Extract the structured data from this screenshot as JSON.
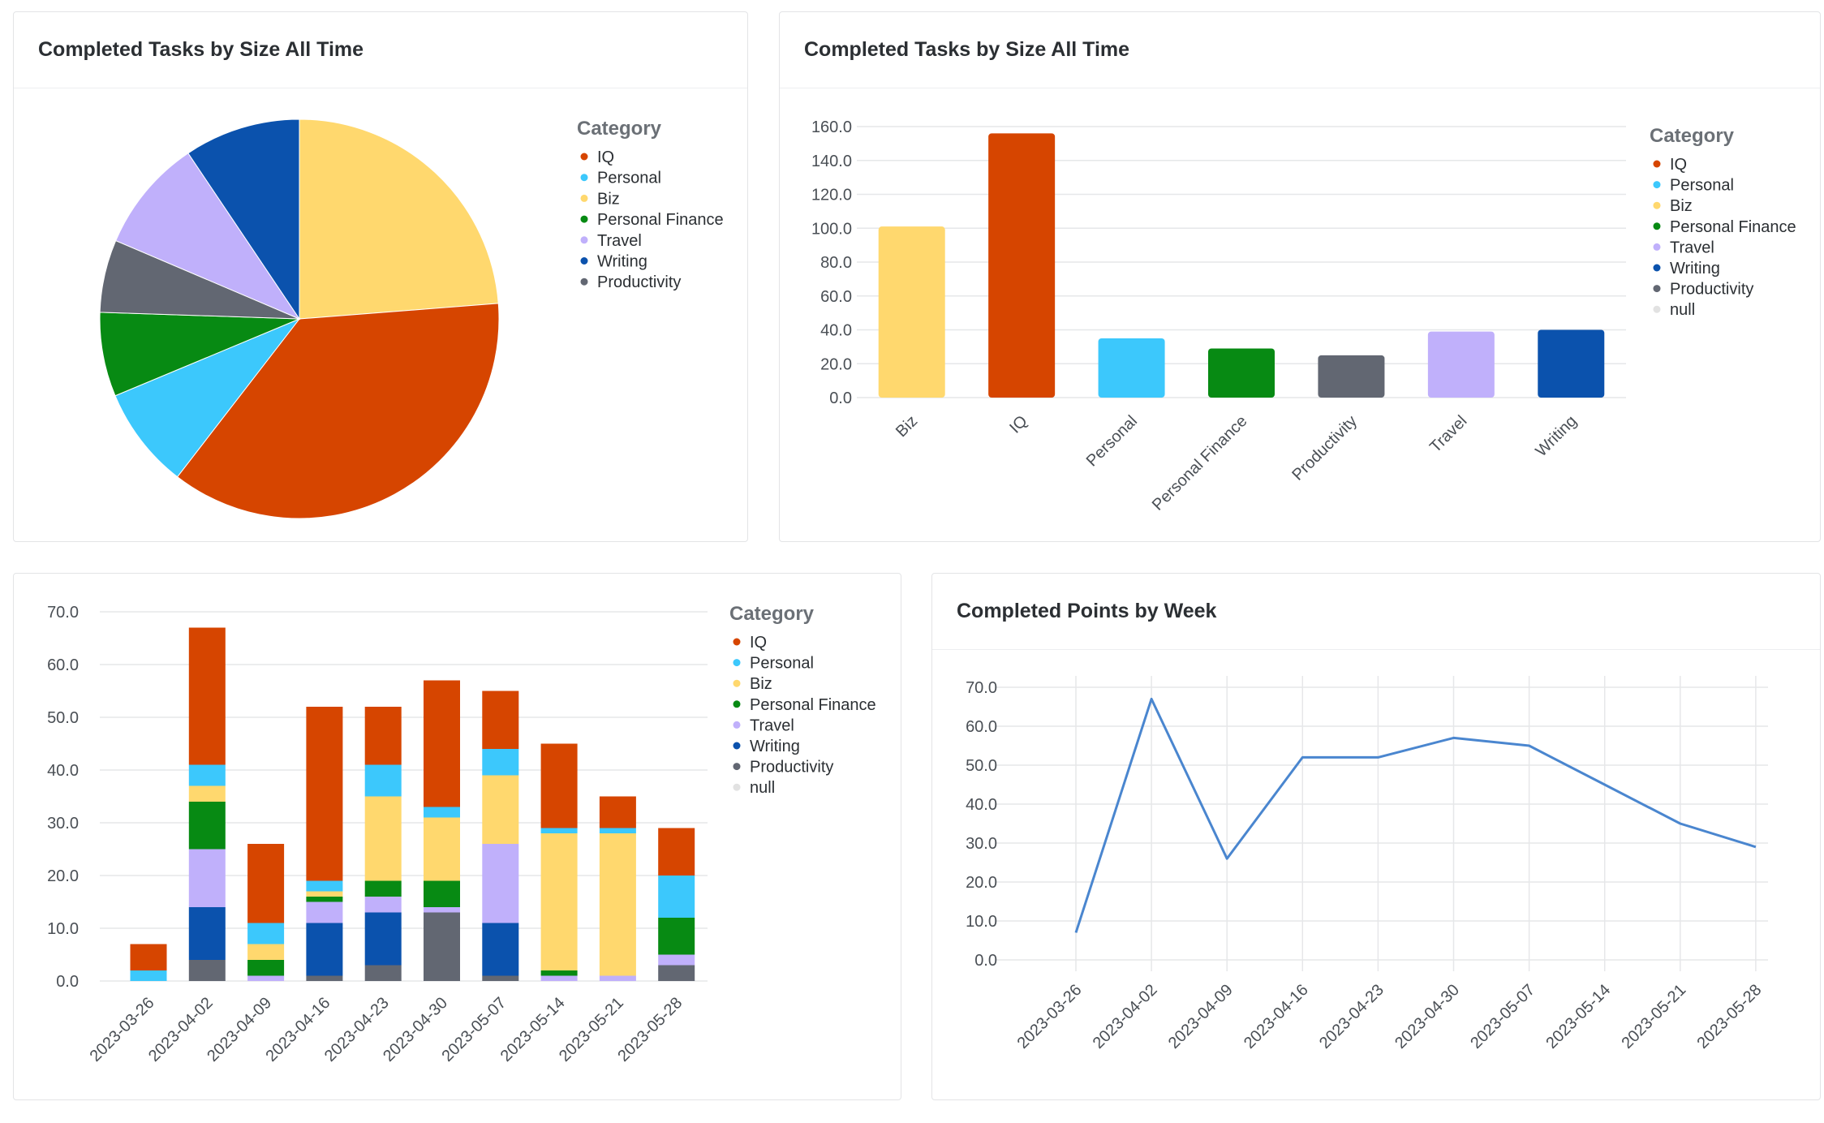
{
  "categories": [
    "IQ",
    "Personal",
    "Biz",
    "Personal Finance",
    "Travel",
    "Writing",
    "Productivity",
    "null"
  ],
  "colors": {
    "IQ": "#d64500",
    "Personal": "#3cc8fc",
    "Biz": "#ffd86e",
    "Personal Finance": "#078a13",
    "Travel": "#c0b0fb",
    "Writing": "#0b52ad",
    "Productivity": "#626772",
    "null": "#e2e2e2"
  },
  "pie_card": {
    "title": "Completed Tasks by Size All Time",
    "legend_title": "Category",
    "legend_items": [
      "IQ",
      "Personal",
      "Biz",
      "Personal Finance",
      "Travel",
      "Writing",
      "Productivity"
    ]
  },
  "bar_card": {
    "title": "Completed Tasks by Size All Time",
    "legend_title": "Category",
    "legend_items": [
      "IQ",
      "Personal",
      "Biz",
      "Personal Finance",
      "Travel",
      "Writing",
      "Productivity",
      "null"
    ],
    "y_ticks": [
      "0.0",
      "20.0",
      "40.0",
      "60.0",
      "80.0",
      "100.0",
      "120.0",
      "140.0",
      "160.0"
    ]
  },
  "stacked_card": {
    "legend_title": "Category",
    "legend_items": [
      "IQ",
      "Personal",
      "Biz",
      "Personal Finance",
      "Travel",
      "Writing",
      "Productivity",
      "null"
    ],
    "y_ticks": [
      "0.0",
      "10.0",
      "20.0",
      "30.0",
      "40.0",
      "50.0",
      "60.0",
      "70.0"
    ]
  },
  "line_card": {
    "title": "Completed Points by Week",
    "y_ticks": [
      "0.0",
      "10.0",
      "20.0",
      "30.0",
      "40.0",
      "50.0",
      "60.0",
      "70.0"
    ]
  },
  "chart_data": [
    {
      "type": "pie",
      "title": "Completed Tasks by Size All Time",
      "legend_title": "Category",
      "order": [
        "Biz",
        "IQ",
        "Personal",
        "Personal Finance",
        "Productivity",
        "Travel",
        "Writing"
      ],
      "values": [
        101,
        156,
        35,
        29,
        25,
        39,
        40
      ]
    },
    {
      "type": "bar",
      "title": "Completed Tasks by Size All Time",
      "legend_title": "Category",
      "categories": [
        "Biz",
        "IQ",
        "Personal",
        "Personal Finance",
        "Productivity",
        "Travel",
        "Writing"
      ],
      "values": [
        101,
        156,
        35,
        29,
        25,
        39,
        40
      ],
      "ylim": [
        0,
        160
      ],
      "grid": true,
      "legend": "right"
    },
    {
      "type": "bar",
      "stacked": true,
      "legend_title": "Category",
      "categories": [
        "2023-03-26",
        "2023-04-02",
        "2023-04-09",
        "2023-04-16",
        "2023-04-23",
        "2023-04-30",
        "2023-05-07",
        "2023-05-14",
        "2023-05-21",
        "2023-05-28"
      ],
      "series": [
        {
          "name": "Productivity",
          "values": [
            0,
            4,
            0,
            1,
            3,
            13,
            1,
            0,
            0,
            3
          ]
        },
        {
          "name": "Writing",
          "values": [
            0,
            10,
            0,
            10,
            10,
            0,
            10,
            0,
            0,
            0
          ]
        },
        {
          "name": "Travel",
          "values": [
            0,
            11,
            1,
            4,
            3,
            1,
            15,
            1,
            1,
            2
          ]
        },
        {
          "name": "Personal Finance",
          "values": [
            0,
            9,
            3,
            1,
            3,
            5,
            0,
            1,
            0,
            7
          ]
        },
        {
          "name": "Biz",
          "values": [
            0,
            3,
            3,
            1,
            16,
            12,
            13,
            26,
            27,
            0
          ]
        },
        {
          "name": "Personal",
          "values": [
            2,
            4,
            4,
            2,
            6,
            2,
            5,
            1,
            1,
            8
          ]
        },
        {
          "name": "IQ",
          "values": [
            5,
            26,
            15,
            33,
            11,
            24,
            11,
            16,
            6,
            9
          ]
        }
      ],
      "ylim": [
        0,
        70
      ],
      "grid": true,
      "legend": "right"
    },
    {
      "type": "line",
      "title": "Completed Points by Week",
      "x": [
        "2023-03-26",
        "2023-04-02",
        "2023-04-09",
        "2023-04-16",
        "2023-04-23",
        "2023-04-30",
        "2023-05-07",
        "2023-05-14",
        "2023-05-21",
        "2023-05-28"
      ],
      "y": [
        7,
        67,
        26,
        52,
        52,
        57,
        55,
        45,
        35,
        29
      ],
      "ylim": [
        0,
        70
      ],
      "grid": true,
      "color": "#4a86cf"
    }
  ]
}
